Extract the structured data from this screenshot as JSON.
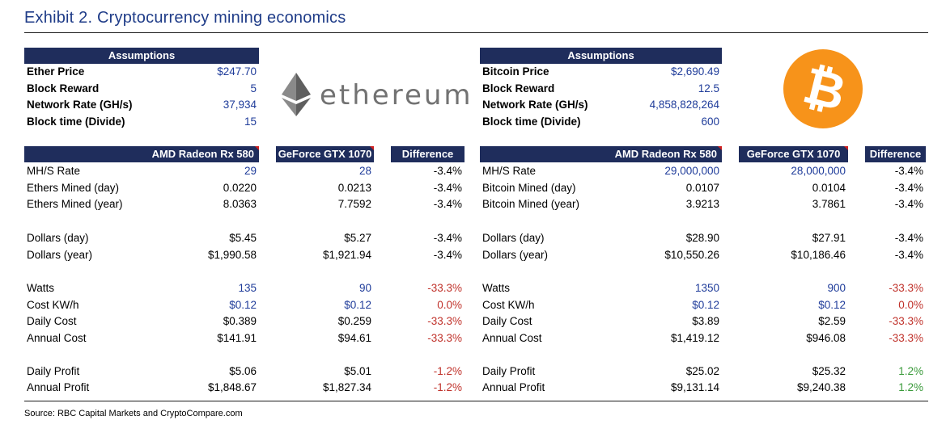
{
  "title": "Exhibit 2. Cryptocurrency mining economics",
  "source": "Source: RBC Capital Markets and CryptoCompare.com",
  "colors": {
    "header_bg": "#1f2d5c",
    "input_blue": "#1f3c9a",
    "negative_red": "#c0322b",
    "positive_green": "#3a9a3a",
    "eth_logo_gray": "#6d6d6d",
    "btc_orange": "#f7931a"
  },
  "logos": {
    "ethereum_word": "ethereum",
    "bitcoin_symbol": "₿"
  },
  "eth": {
    "assumptions_header": "Assumptions",
    "assumptions": [
      {
        "label": "Ether Price",
        "value": "$247.70"
      },
      {
        "label": "Block Reward",
        "value": "5"
      },
      {
        "label": "Network Rate (GH/s)",
        "value": "37,934"
      },
      {
        "label": "Block time (Divide)",
        "value": "15"
      }
    ],
    "columns": [
      "AMD Radeon Rx 580",
      "GeForce GTX 1070",
      "Difference"
    ],
    "rows": [
      {
        "label": "MH/S Rate",
        "a": "29",
        "b": "28",
        "d": "-3.4%"
      },
      {
        "label": "Ethers Mined (day)",
        "a": "0.0220",
        "b": "0.0213",
        "d": "-3.4%"
      },
      {
        "label": "Ethers Mined (year)",
        "a": "8.0363",
        "b": "7.7592",
        "d": "-3.4%"
      },
      {
        "label": "Dollars (day)",
        "a": "$5.45",
        "b": "$5.27",
        "d": "-3.4%"
      },
      {
        "label": "Dollars (year)",
        "a": "$1,990.58",
        "b": "$1,921.94",
        "d": "-3.4%"
      },
      {
        "label": "Watts",
        "a": "135",
        "b": "90",
        "d": "-33.3%"
      },
      {
        "label": "Cost KW/h",
        "a": "$0.12",
        "b": "$0.12",
        "d": "0.0%"
      },
      {
        "label": "Daily Cost",
        "a": "$0.389",
        "b": "$0.259",
        "d": "-33.3%"
      },
      {
        "label": "Annual Cost",
        "a": "$141.91",
        "b": "$94.61",
        "d": "-33.3%"
      },
      {
        "label": "Daily Profit",
        "a": "$5.06",
        "b": "$5.01",
        "d": "-1.2%"
      },
      {
        "label": "Annual Profit",
        "a": "$1,848.67",
        "b": "$1,827.34",
        "d": "-1.2%"
      }
    ]
  },
  "btc": {
    "assumptions_header": "Assumptions",
    "assumptions": [
      {
        "label": "Bitcoin Price",
        "value": "$2,690.49"
      },
      {
        "label": "Block Reward",
        "value": "12.5"
      },
      {
        "label": "Network Rate (GH/s)",
        "value": "4,858,828,264"
      },
      {
        "label": "Block time (Divide)",
        "value": "600"
      }
    ],
    "columns": [
      "AMD Radeon Rx 580",
      "GeForce GTX 1070",
      "Difference"
    ],
    "rows": [
      {
        "label": "MH/S Rate",
        "a": "29,000,000",
        "b": "28,000,000",
        "d": "-3.4%"
      },
      {
        "label": "Bitcoin Mined (day)",
        "a": "0.0107",
        "b": "0.0104",
        "d": "-3.4%"
      },
      {
        "label": "Bitcoin Mined (year)",
        "a": "3.9213",
        "b": "3.7861",
        "d": "-3.4%"
      },
      {
        "label": "Dollars (day)",
        "a": "$28.90",
        "b": "$27.91",
        "d": "-3.4%"
      },
      {
        "label": "Dollars (year)",
        "a": "$10,550.26",
        "b": "$10,186.46",
        "d": "-3.4%"
      },
      {
        "label": "Watts",
        "a": "1350",
        "b": "900",
        "d": "-33.3%"
      },
      {
        "label": "Cost KW/h",
        "a": "$0.12",
        "b": "$0.12",
        "d": "0.0%"
      },
      {
        "label": "Daily Cost",
        "a": "$3.89",
        "b": "$2.59",
        "d": "-33.3%"
      },
      {
        "label": "Annual Cost",
        "a": "$1,419.12",
        "b": "$946.08",
        "d": "-33.3%"
      },
      {
        "label": "Daily Profit",
        "a": "$25.02",
        "b": "$25.32",
        "d": "1.2%"
      },
      {
        "label": "Annual Profit",
        "a": "$9,131.14",
        "b": "$9,240.38",
        "d": "1.2%"
      }
    ]
  }
}
